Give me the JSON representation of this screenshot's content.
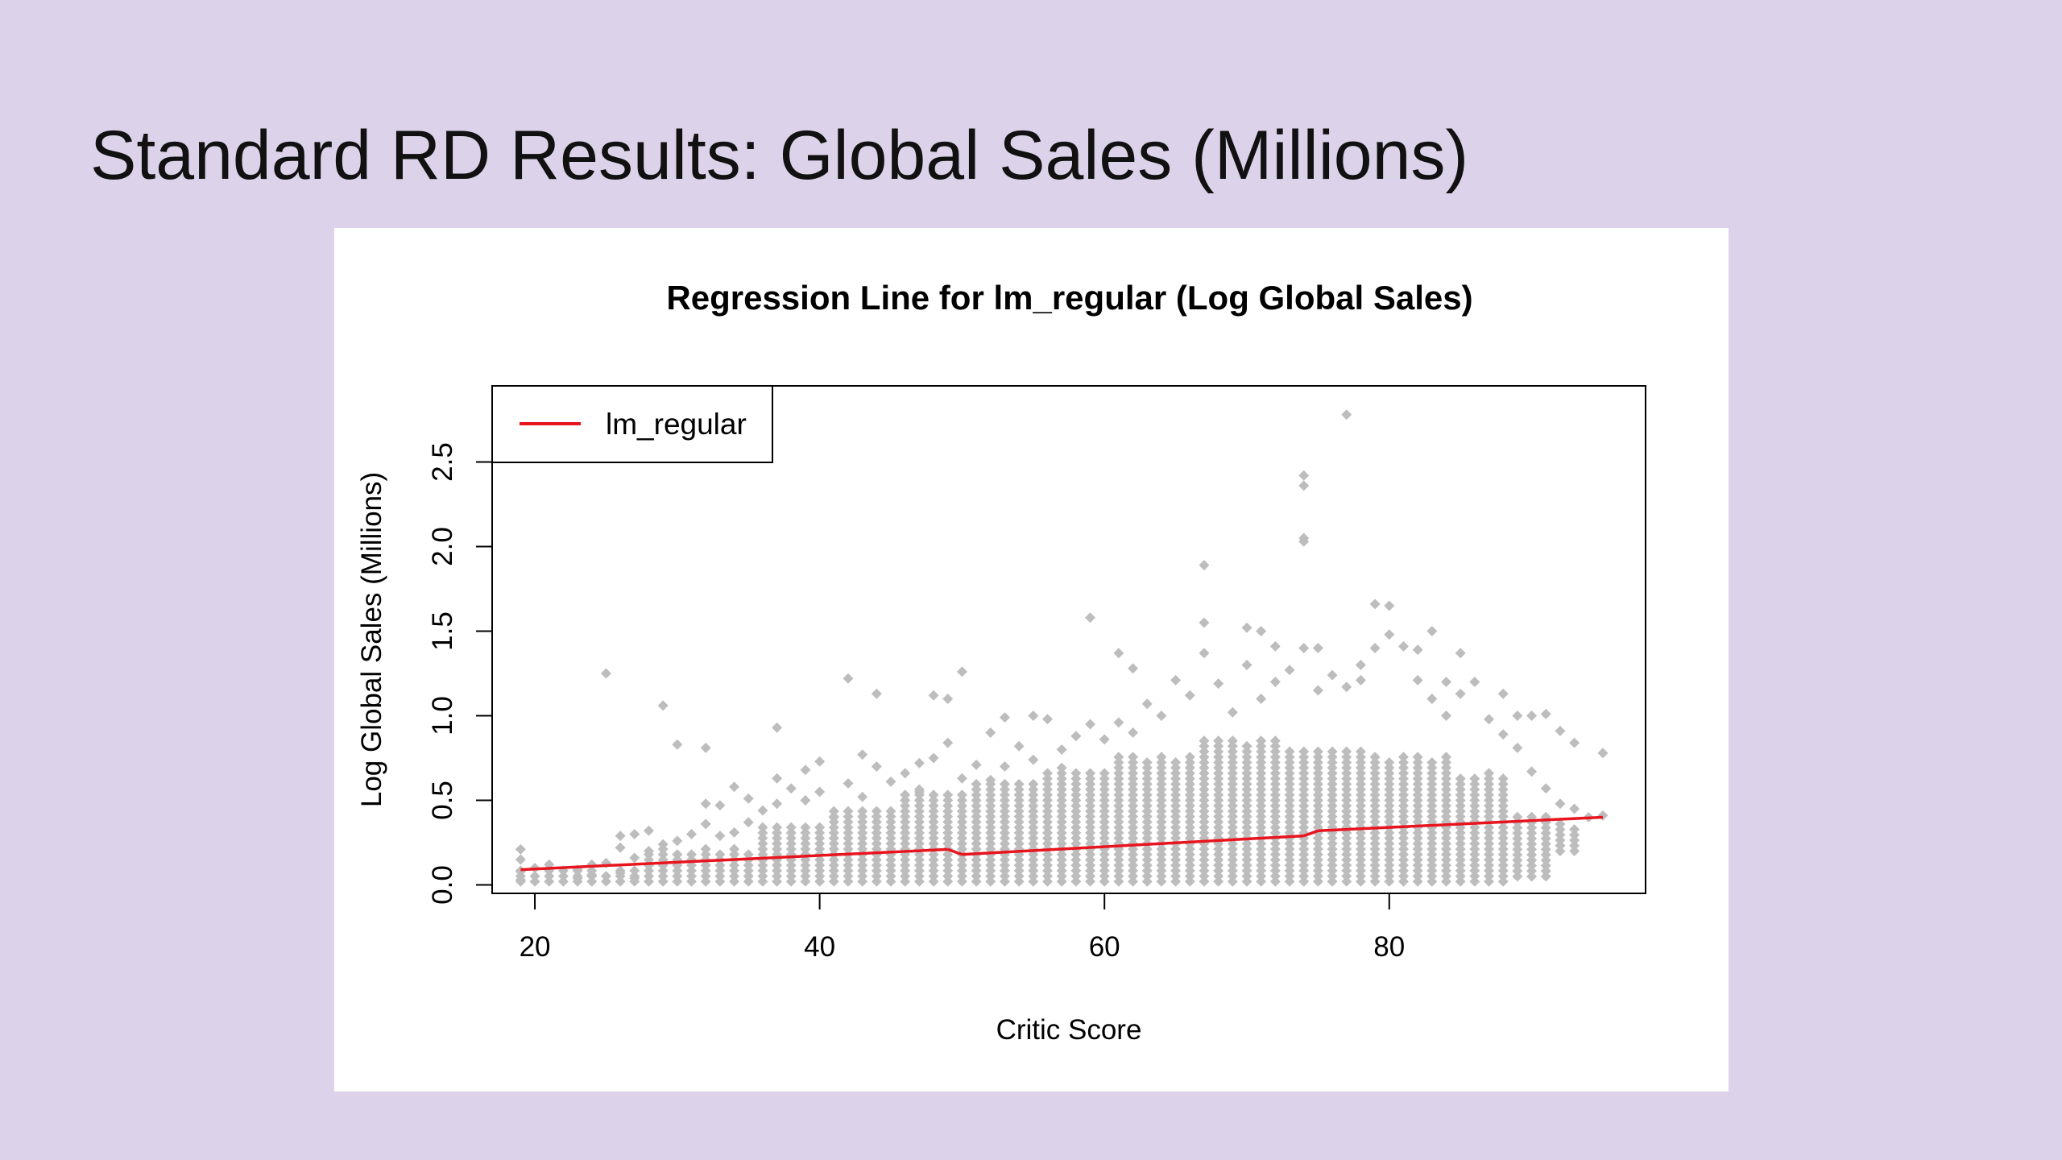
{
  "slide": {
    "title": "Standard RD Results: Global Sales (Millions)"
  },
  "chart_data": {
    "type": "scatter",
    "title": "Regression Line for lm_regular (Log Global Sales)",
    "xlabel": "Critic Score",
    "ylabel": "Log Global Sales (Millions)",
    "xlim": [
      17,
      98
    ],
    "ylim": [
      -0.05,
      2.95
    ],
    "x_ticks": [
      20,
      40,
      60,
      80
    ],
    "y_ticks": [
      0.0,
      0.5,
      1.0,
      1.5,
      2.0,
      2.5
    ],
    "y_tick_labels": [
      "0.0",
      "0.5",
      "1.0",
      "1.5",
      "2.0",
      "2.5"
    ],
    "grid": false,
    "legend": {
      "position": "top-left",
      "entries": [
        {
          "label": "lm_regular",
          "color": "#e8141e"
        }
      ]
    },
    "colors": {
      "points": "#bdbdbd",
      "regression_line": "#e8141e",
      "axes": "#000000"
    },
    "series": [
      {
        "name": "lm_regular",
        "kind": "line",
        "segments": [
          {
            "x": [
              19,
              49
            ],
            "y": [
              0.09,
              0.21
            ]
          },
          {
            "x": [
              50,
              74
            ],
            "y": [
              0.18,
              0.29
            ]
          },
          {
            "x": [
              75,
              95
            ],
            "y": [
              0.32,
              0.4
            ]
          }
        ]
      }
    ],
    "scatter_points": [
      {
        "x": 19,
        "y": 0.21
      },
      {
        "x": 19,
        "y": 0.15
      },
      {
        "x": 19,
        "y": 0.08
      },
      {
        "x": 19,
        "y": 0.03
      },
      {
        "x": 20,
        "y": 0.1
      },
      {
        "x": 21,
        "y": 0.12
      },
      {
        "x": 23,
        "y": 0.09
      },
      {
        "x": 23,
        "y": 0.04
      },
      {
        "x": 24,
        "y": 0.12
      },
      {
        "x": 24,
        "y": 0.06
      },
      {
        "x": 25,
        "y": 1.25
      },
      {
        "x": 25,
        "y": 0.13
      },
      {
        "x": 26,
        "y": 0.29
      },
      {
        "x": 26,
        "y": 0.22
      },
      {
        "x": 26,
        "y": 0.07
      },
      {
        "x": 27,
        "y": 0.3
      },
      {
        "x": 27,
        "y": 0.16
      },
      {
        "x": 27,
        "y": 0.04
      },
      {
        "x": 28,
        "y": 0.32
      },
      {
        "x": 28,
        "y": 0.2
      },
      {
        "x": 29,
        "y": 1.06
      },
      {
        "x": 29,
        "y": 0.24
      },
      {
        "x": 30,
        "y": 0.83
      },
      {
        "x": 30,
        "y": 0.26
      },
      {
        "x": 30,
        "y": 0.18
      },
      {
        "x": 31,
        "y": 0.3
      },
      {
        "x": 32,
        "y": 0.81
      },
      {
        "x": 32,
        "y": 0.48
      },
      {
        "x": 32,
        "y": 0.36
      },
      {
        "x": 33,
        "y": 0.47
      },
      {
        "x": 33,
        "y": 0.29
      },
      {
        "x": 34,
        "y": 0.58
      },
      {
        "x": 34,
        "y": 0.31
      },
      {
        "x": 35,
        "y": 0.51
      },
      {
        "x": 35,
        "y": 0.37
      },
      {
        "x": 36,
        "y": 0.44
      },
      {
        "x": 37,
        "y": 0.93
      },
      {
        "x": 37,
        "y": 0.63
      },
      {
        "x": 37,
        "y": 0.48
      },
      {
        "x": 38,
        "y": 0.57
      },
      {
        "x": 39,
        "y": 0.68
      },
      {
        "x": 39,
        "y": 0.5
      },
      {
        "x": 40,
        "y": 0.73
      },
      {
        "x": 40,
        "y": 0.55
      },
      {
        "x": 41,
        "y": 0.4
      },
      {
        "x": 42,
        "y": 1.22
      },
      {
        "x": 42,
        "y": 0.6
      },
      {
        "x": 43,
        "y": 0.77
      },
      {
        "x": 43,
        "y": 0.52
      },
      {
        "x": 44,
        "y": 1.13
      },
      {
        "x": 44,
        "y": 0.7
      },
      {
        "x": 45,
        "y": 0.61
      },
      {
        "x": 46,
        "y": 0.66
      },
      {
        "x": 46,
        "y": 0.5
      },
      {
        "x": 47,
        "y": 0.72
      },
      {
        "x": 47,
        "y": 0.55
      },
      {
        "x": 48,
        "y": 1.12
      },
      {
        "x": 48,
        "y": 0.75
      },
      {
        "x": 49,
        "y": 1.1
      },
      {
        "x": 49,
        "y": 0.84
      },
      {
        "x": 50,
        "y": 1.26
      },
      {
        "x": 50,
        "y": 0.63
      },
      {
        "x": 51,
        "y": 0.71
      },
      {
        "x": 52,
        "y": 0.9
      },
      {
        "x": 52,
        "y": 0.62
      },
      {
        "x": 53,
        "y": 0.99
      },
      {
        "x": 53,
        "y": 0.7
      },
      {
        "x": 54,
        "y": 0.82
      },
      {
        "x": 55,
        "y": 1.0
      },
      {
        "x": 55,
        "y": 0.74
      },
      {
        "x": 56,
        "y": 0.98
      },
      {
        "x": 57,
        "y": 0.8
      },
      {
        "x": 58,
        "y": 0.88
      },
      {
        "x": 59,
        "y": 1.58
      },
      {
        "x": 59,
        "y": 0.95
      },
      {
        "x": 60,
        "y": 0.86
      },
      {
        "x": 61,
        "y": 1.37
      },
      {
        "x": 61,
        "y": 0.96
      },
      {
        "x": 62,
        "y": 1.28
      },
      {
        "x": 62,
        "y": 0.9
      },
      {
        "x": 63,
        "y": 1.07
      },
      {
        "x": 64,
        "y": 1.0
      },
      {
        "x": 65,
        "y": 1.21
      },
      {
        "x": 66,
        "y": 1.12
      },
      {
        "x": 67,
        "y": 1.89
      },
      {
        "x": 67,
        "y": 1.55
      },
      {
        "x": 67,
        "y": 1.37
      },
      {
        "x": 68,
        "y": 1.19
      },
      {
        "x": 69,
        "y": 1.02
      },
      {
        "x": 70,
        "y": 1.52
      },
      {
        "x": 70,
        "y": 1.3
      },
      {
        "x": 71,
        "y": 1.5
      },
      {
        "x": 71,
        "y": 1.1
      },
      {
        "x": 72,
        "y": 1.41
      },
      {
        "x": 72,
        "y": 1.2
      },
      {
        "x": 73,
        "y": 1.27
      },
      {
        "x": 74,
        "y": 2.42
      },
      {
        "x": 74,
        "y": 2.36
      },
      {
        "x": 74,
        "y": 2.05
      },
      {
        "x": 74,
        "y": 2.03
      },
      {
        "x": 74,
        "y": 1.4
      },
      {
        "x": 75,
        "y": 1.4
      },
      {
        "x": 75,
        "y": 1.15
      },
      {
        "x": 76,
        "y": 1.24
      },
      {
        "x": 77,
        "y": 2.78
      },
      {
        "x": 77,
        "y": 1.17
      },
      {
        "x": 78,
        "y": 1.3
      },
      {
        "x": 78,
        "y": 1.21
      },
      {
        "x": 79,
        "y": 1.66
      },
      {
        "x": 79,
        "y": 1.4
      },
      {
        "x": 80,
        "y": 1.65
      },
      {
        "x": 80,
        "y": 1.48
      },
      {
        "x": 81,
        "y": 1.41
      },
      {
        "x": 82,
        "y": 1.39
      },
      {
        "x": 82,
        "y": 1.21
      },
      {
        "x": 83,
        "y": 1.5
      },
      {
        "x": 83,
        "y": 1.1
      },
      {
        "x": 84,
        "y": 1.2
      },
      {
        "x": 84,
        "y": 1.0
      },
      {
        "x": 85,
        "y": 1.37
      },
      {
        "x": 85,
        "y": 1.13
      },
      {
        "x": 86,
        "y": 1.2
      },
      {
        "x": 87,
        "y": 0.98
      },
      {
        "x": 88,
        "y": 1.13
      },
      {
        "x": 88,
        "y": 0.89
      },
      {
        "x": 89,
        "y": 1.0
      },
      {
        "x": 89,
        "y": 0.81
      },
      {
        "x": 90,
        "y": 1.0
      },
      {
        "x": 90,
        "y": 0.67
      },
      {
        "x": 91,
        "y": 1.01
      },
      {
        "x": 91,
        "y": 0.57
      },
      {
        "x": 92,
        "y": 0.91
      },
      {
        "x": 92,
        "y": 0.48
      },
      {
        "x": 93,
        "y": 0.84
      },
      {
        "x": 93,
        "y": 0.45
      },
      {
        "x": 94,
        "y": 0.4
      },
      {
        "x": 95,
        "y": 0.78
      },
      {
        "x": 95,
        "y": 0.41
      }
    ],
    "scatter_bands": [
      {
        "x0": 19,
        "x1": 27,
        "lo": 0.02,
        "hi": 0.08
      },
      {
        "x0": 28,
        "x1": 35,
        "lo": 0.02,
        "hi": 0.2
      },
      {
        "x0": 36,
        "x1": 40,
        "lo": 0.02,
        "hi": 0.35
      },
      {
        "x0": 41,
        "x1": 45,
        "lo": 0.02,
        "hi": 0.45
      },
      {
        "x0": 46,
        "x1": 50,
        "lo": 0.02,
        "hi": 0.55
      },
      {
        "x0": 51,
        "x1": 55,
        "lo": 0.02,
        "hi": 0.6
      },
      {
        "x0": 56,
        "x1": 60,
        "lo": 0.02,
        "hi": 0.68
      },
      {
        "x0": 61,
        "x1": 66,
        "lo": 0.02,
        "hi": 0.75
      },
      {
        "x0": 67,
        "x1": 72,
        "lo": 0.02,
        "hi": 0.85
      },
      {
        "x0": 73,
        "x1": 78,
        "lo": 0.02,
        "hi": 0.8
      },
      {
        "x0": 79,
        "x1": 84,
        "lo": 0.02,
        "hi": 0.75
      },
      {
        "x0": 85,
        "x1": 88,
        "lo": 0.02,
        "hi": 0.65
      },
      {
        "x0": 89,
        "x1": 91,
        "lo": 0.05,
        "hi": 0.42
      },
      {
        "x0": 92,
        "x1": 93,
        "lo": 0.2,
        "hi": 0.35
      }
    ]
  }
}
